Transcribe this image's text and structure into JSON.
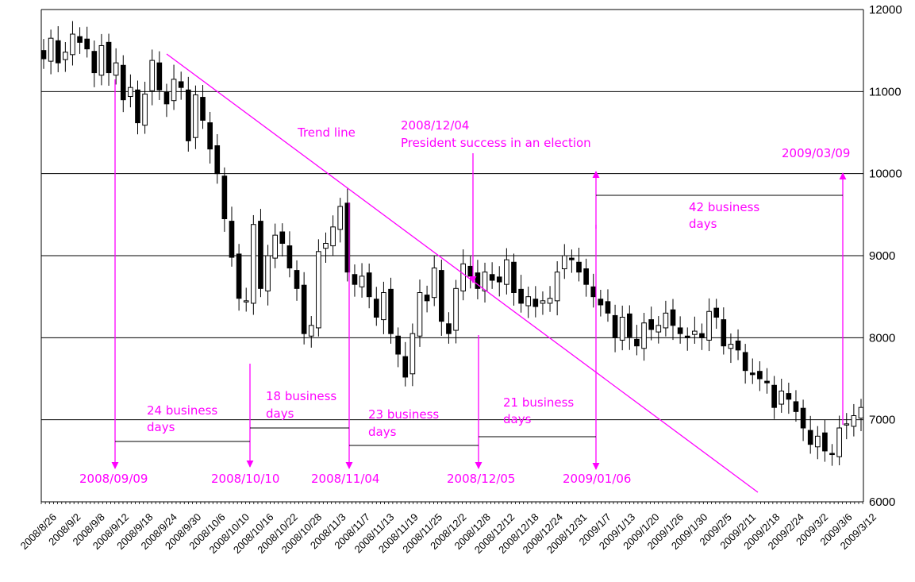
{
  "colors": {
    "accent": "#ff00ff",
    "up_fill": "#ffffff",
    "down_fill": "#000000",
    "grid": "#000000"
  },
  "chart_data": {
    "type": "candlestick",
    "ylim": [
      6000,
      12000
    ],
    "y_ticks": [
      6000,
      7000,
      8000,
      9000,
      10000,
      11000,
      12000
    ],
    "grid": "horizontal at each y tick",
    "x_tick_labels": [
      "2008/8/26",
      "2008/9/2",
      "2008/9/8",
      "2008/9/12",
      "2008/9/18",
      "2008/9/24",
      "2008/9/30",
      "2008/10/6",
      "2008/10/10",
      "2008/10/16",
      "2008/10/22",
      "2008/10/28",
      "2008/11/3",
      "2008/11/7",
      "2008/11/13",
      "2008/11/19",
      "2008/11/25",
      "2008/12/2",
      "2008/12/8",
      "2008/12/12",
      "2008/12/18",
      "2008/12/24",
      "2008/12/31",
      "2009/1/7",
      "2009/1/13",
      "2009/1/20",
      "2009/1/26",
      "2009/1/30",
      "2009/2/5",
      "2009/2/11",
      "2009/2/18",
      "2009/2/24",
      "2009/3/2",
      "2009/3/6",
      "2009/3/12"
    ],
    "closes": [
      11400,
      11650,
      11350,
      11480,
      11700,
      11600,
      11520,
      11230,
      11560,
      11230,
      11350,
      10900,
      11050,
      10620,
      10970,
      11380,
      11020,
      10850,
      11150,
      11050,
      10400,
      10960,
      10650,
      10300,
      10000,
      9450,
      8980,
      8480,
      8450,
      9380,
      8600,
      9000,
      9250,
      9150,
      8850,
      8600,
      8050,
      8150,
      9050,
      9150,
      9350,
      9600,
      8800,
      8650,
      8750,
      8500,
      8250,
      8550,
      8050,
      7800,
      7520,
      8050,
      8550,
      8450,
      8850,
      8200,
      8050,
      8600,
      8900,
      8750,
      8600,
      8800,
      8700,
      8680,
      8950,
      8550,
      8420,
      8500,
      8380,
      8450,
      8480,
      8800,
      9000,
      8950,
      8800,
      8650,
      8500,
      8400,
      8300,
      8000,
      8250,
      8010,
      7900,
      8180,
      8100,
      8150,
      8300,
      8150,
      8050,
      8000,
      8080,
      8000,
      8320,
      8250,
      7900,
      7920,
      7850,
      7600,
      7550,
      7500,
      7450,
      7150,
      7350,
      7250,
      7100,
      6900,
      6700,
      6800,
      6620,
      6580,
      6900,
      6950,
      7050,
      7150
    ],
    "candle_source": "traced",
    "annotations": {
      "trend_line_label": "Trend line",
      "election_date": "2008/12/04",
      "election_text": "President success in an election",
      "event_date_top": "2009/03/09",
      "intervals": [
        {
          "line1": "24 business",
          "line2": "days"
        },
        {
          "line1": "18 business",
          "line2": "days"
        },
        {
          "line1": "23 business",
          "line2": "days"
        },
        {
          "line1": "21 business",
          "line2": "days"
        },
        {
          "line1": "42 business",
          "line2": "days"
        }
      ],
      "bottom_dates": [
        "2008/09/09",
        "2008/10/10",
        "2008/11/04",
        "2008/12/05",
        "2009/01/06"
      ]
    }
  }
}
